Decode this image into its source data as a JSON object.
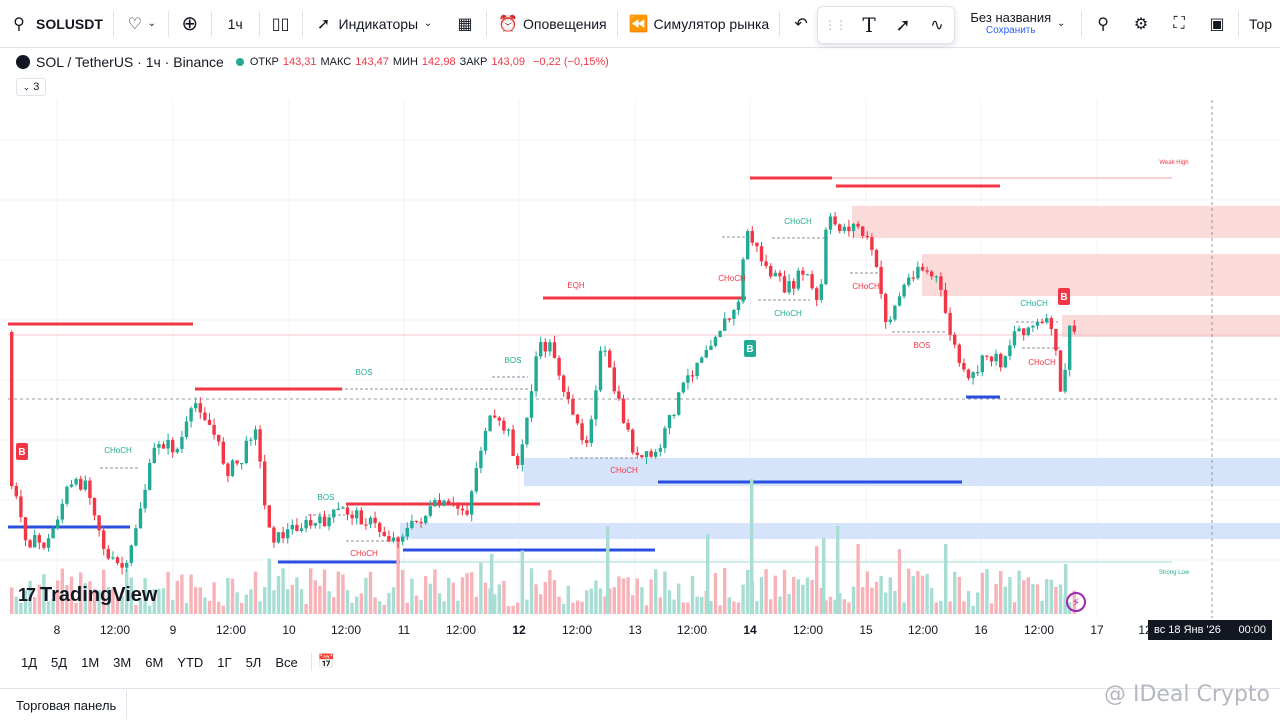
{
  "toolbar": {
    "symbol": "SOLUSDT",
    "interval": "1ч",
    "indicators_label": "Индикаторы",
    "alerts_label": "Оповещения",
    "replay_label": "Симулятор рынка",
    "layout_name": "Без названия",
    "save_label": "Сохранить",
    "trade_label": "Тор"
  },
  "legend": {
    "title": "SOL / TetherUS · 1ч · Binance",
    "open_label": "ОТКР",
    "open": "143,31",
    "high_label": "МАКС",
    "high": "143,47",
    "low_label": "МИН",
    "low": "142,98",
    "close_label": "ЗАКР",
    "close": "143,09",
    "change": "−0,22 (−0,15%)",
    "collapsed_count": "3"
  },
  "chart_data": {
    "type": "candlestick",
    "colors": {
      "up": "#22ab94",
      "down": "#f23645",
      "supply": "#fbdada",
      "demand": "#d6e4fb",
      "bos_line": "#22ab94",
      "level_red": "#f23645",
      "level_blue": "#2a4fe0"
    },
    "annotations": [
      {
        "text": "CHoCH",
        "color": "#22ab94"
      },
      {
        "text": "BOS",
        "color": "#22ab94"
      },
      {
        "text": "BOS",
        "color": "#22ab94"
      },
      {
        "text": "CHoCH",
        "color": "#f23645"
      },
      {
        "text": "BOS",
        "color": "#22ab94"
      },
      {
        "text": "EQH",
        "color": "#f23645"
      },
      {
        "text": "CHoCH",
        "color": "#22ab94"
      },
      {
        "text": "CHoCH",
        "color": "#f23645"
      },
      {
        "text": "CHoCH",
        "color": "#22ab94"
      },
      {
        "text": "CHoCH",
        "color": "#f23645"
      },
      {
        "text": "CHoCH",
        "color": "#f23645"
      },
      {
        "text": "BOS",
        "color": "#f23645"
      },
      {
        "text": "CHoCH",
        "color": "#22ab94"
      },
      {
        "text": "CHoCH",
        "color": "#f23645"
      },
      {
        "text": "Weak High",
        "color": "#f23645"
      },
      {
        "text": "Strong Low",
        "color": "#22ab94"
      }
    ],
    "signals": [
      {
        "text": "B",
        "color": "#f23645"
      },
      {
        "text": "B",
        "color": "#22ab94"
      },
      {
        "text": "B",
        "color": "#f23645"
      }
    ]
  },
  "time_axis": {
    "labels": [
      "8",
      "12:00",
      "9",
      "12:00",
      "10",
      "12:00",
      "11",
      "12:00",
      "12",
      "12:00",
      "13",
      "12:00",
      "14",
      "12:00",
      "15",
      "12:00",
      "16",
      "12:00",
      "17",
      "12"
    ],
    "bold_index": [
      8,
      12
    ],
    "cursor_date": "вс 18 Янв '26",
    "cursor_time": "00:00"
  },
  "brand": "TradingView",
  "range_buttons": [
    "1Д",
    "5Д",
    "1М",
    "3М",
    "6М",
    "YTD",
    "1Г",
    "5Л",
    "Все"
  ],
  "footer": {
    "tab": "Торговая панель"
  },
  "watermark": "@ IDeal Crypto"
}
